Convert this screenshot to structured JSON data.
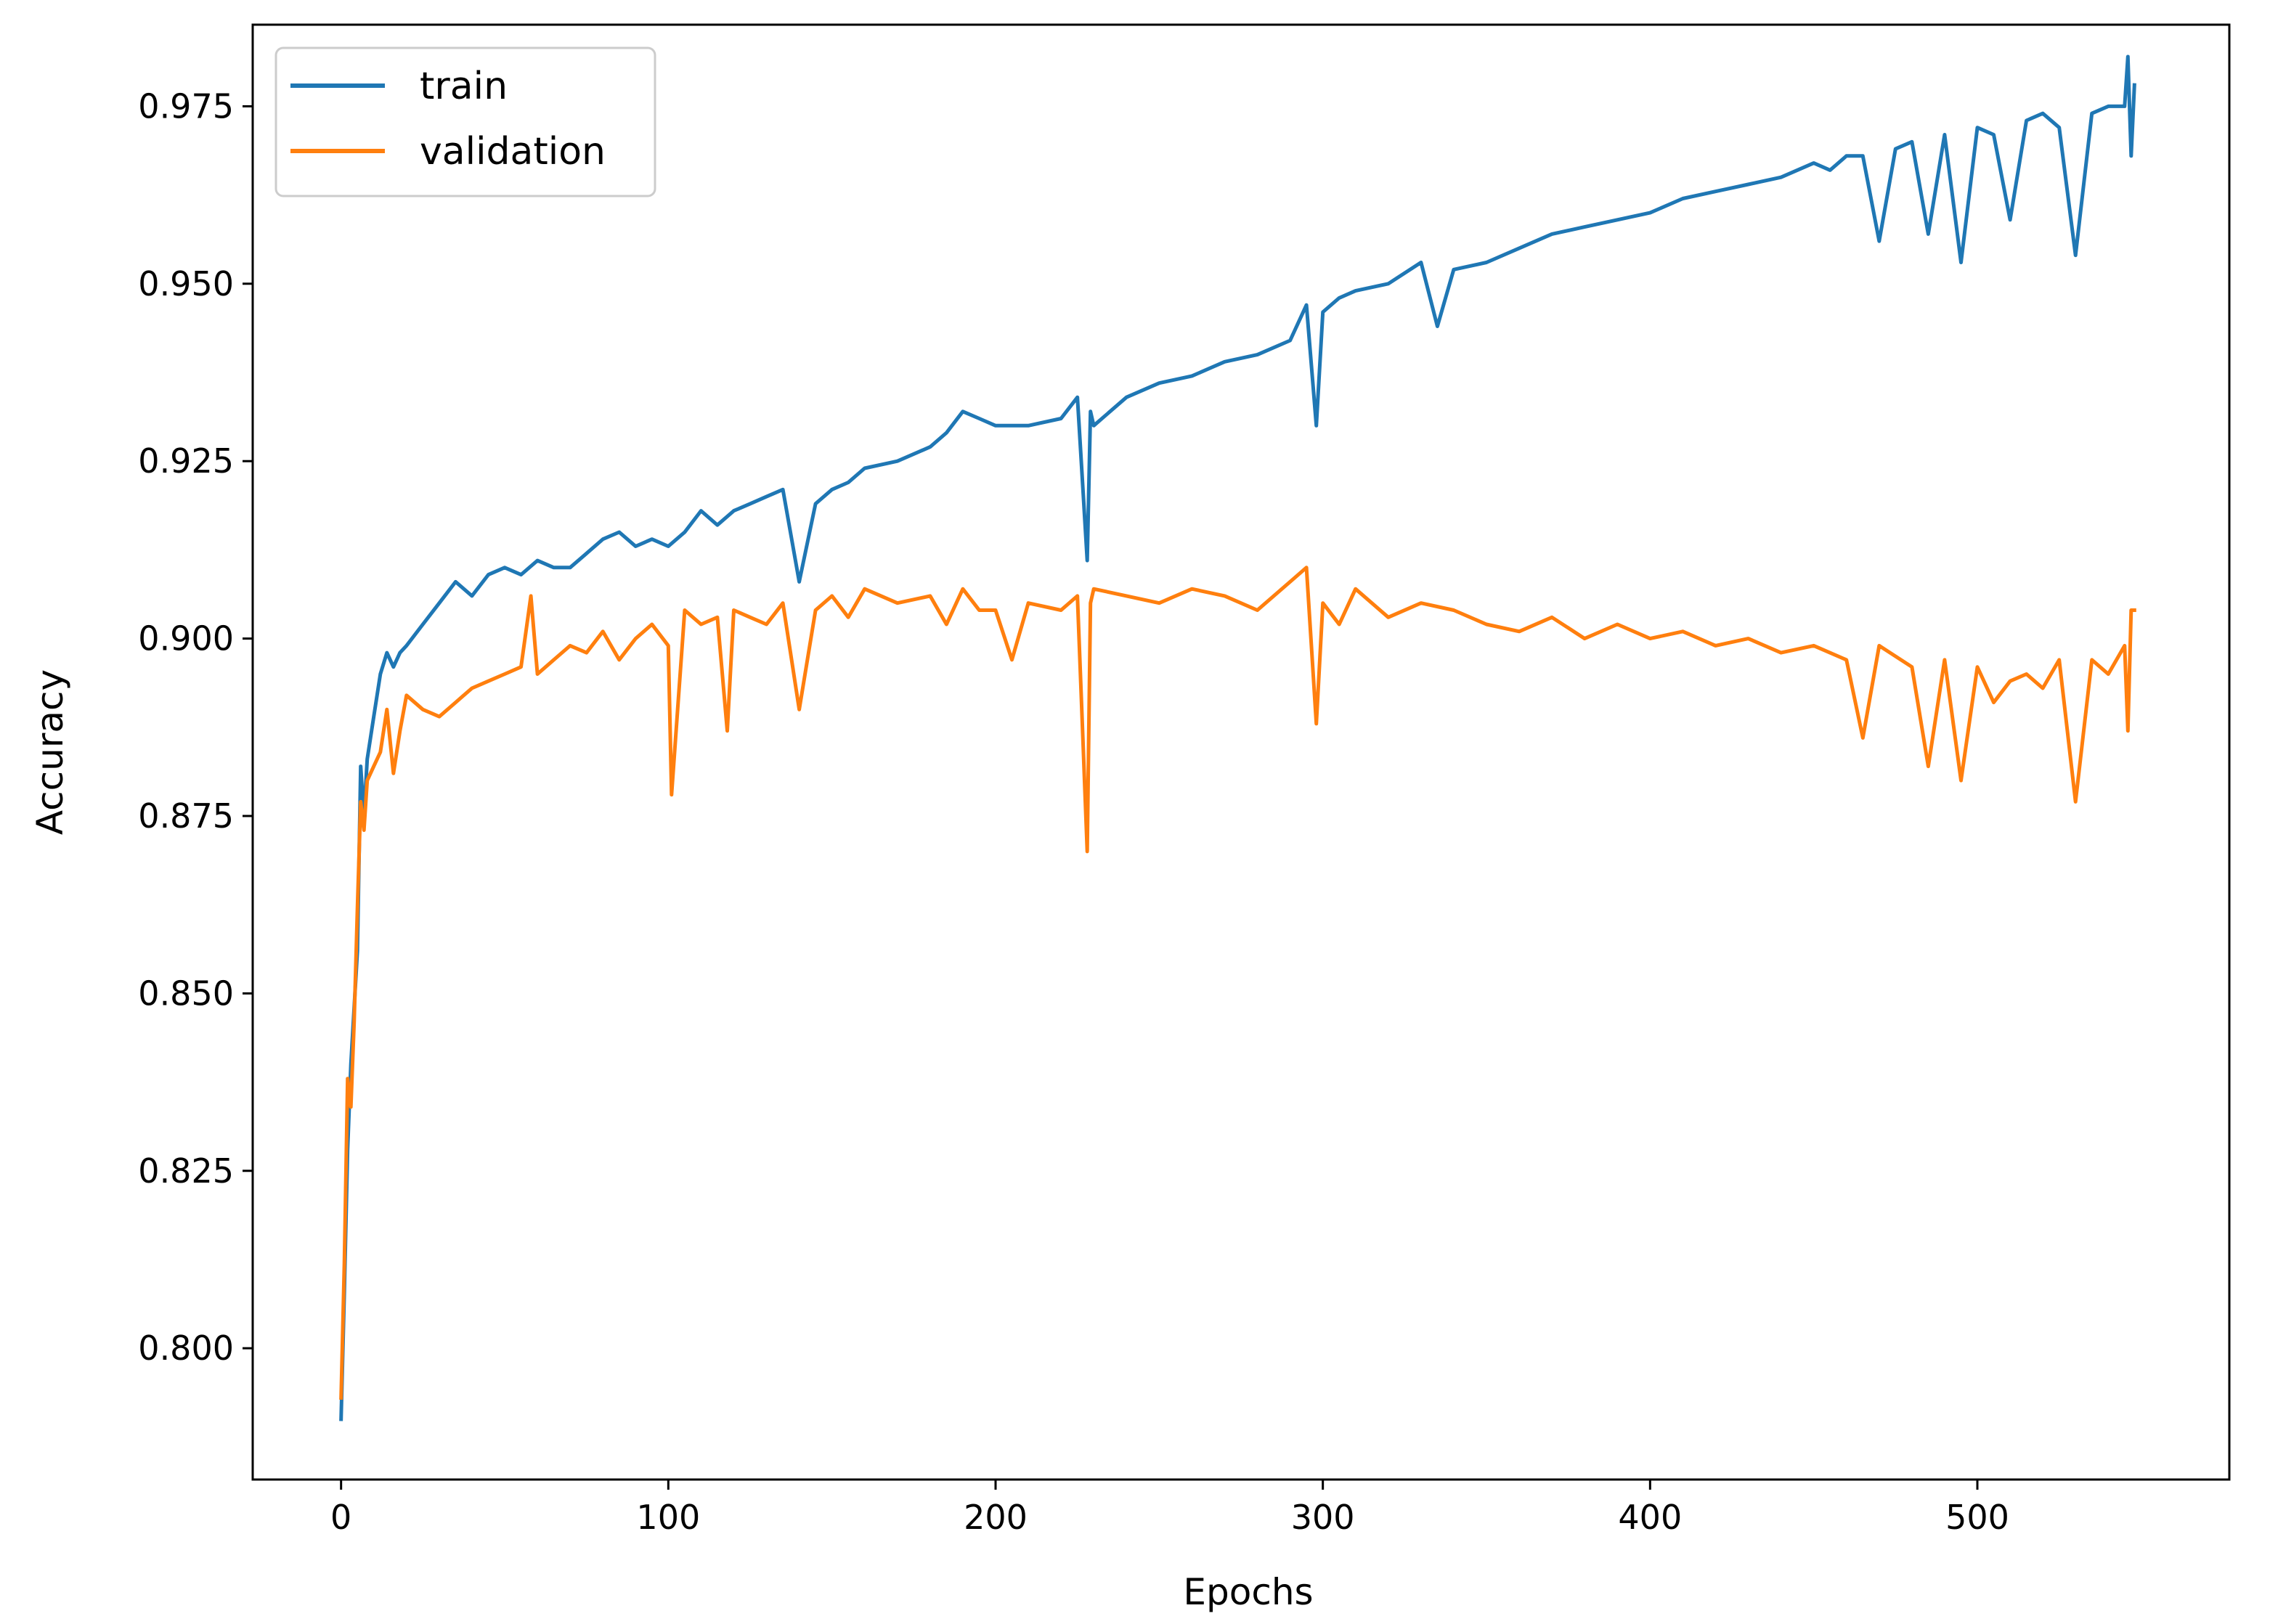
{
  "chart_data": {
    "type": "line",
    "title": "",
    "xlabel": "Epochs",
    "ylabel": "Accuracy",
    "xlim": [
      -27,
      577
    ],
    "ylim": [
      0.7815,
      0.9865
    ],
    "xticks": [
      0,
      100,
      200,
      300,
      400,
      500
    ],
    "xtick_labels": [
      "0",
      "100",
      "200",
      "300",
      "400",
      "500"
    ],
    "yticks": [
      0.8,
      0.825,
      0.85,
      0.875,
      0.9,
      0.925,
      0.95,
      0.975
    ],
    "ytick_labels": [
      "0.800",
      "0.825",
      "0.850",
      "0.875",
      "0.900",
      "0.925",
      "0.950",
      "0.975"
    ],
    "grid": false,
    "legend_position": "upper-left",
    "series": [
      {
        "name": "train",
        "color": "#1f77b4",
        "x": [
          0,
          1,
          2,
          3,
          4,
          5,
          6,
          7,
          8,
          10,
          12,
          14,
          16,
          18,
          20,
          25,
          30,
          35,
          40,
          45,
          50,
          55,
          60,
          65,
          70,
          75,
          80,
          85,
          90,
          95,
          100,
          105,
          110,
          115,
          120,
          125,
          130,
          135,
          140,
          145,
          150,
          155,
          160,
          170,
          180,
          185,
          190,
          195,
          200,
          210,
          220,
          225,
          228,
          229,
          230,
          240,
          250,
          260,
          270,
          280,
          290,
          295,
          298,
          300,
          305,
          310,
          320,
          330,
          335,
          340,
          350,
          360,
          370,
          380,
          390,
          400,
          410,
          420,
          430,
          440,
          450,
          455,
          460,
          465,
          470,
          475,
          480,
          485,
          490,
          495,
          500,
          505,
          510,
          515,
          520,
          525,
          530,
          535,
          540,
          545,
          546,
          547,
          548
        ],
        "values": [
          0.79,
          0.808,
          0.828,
          0.84,
          0.848,
          0.856,
          0.882,
          0.875,
          0.883,
          0.889,
          0.895,
          0.898,
          0.896,
          0.898,
          0.899,
          0.902,
          0.905,
          0.908,
          0.906,
          0.909,
          0.91,
          0.909,
          0.911,
          0.91,
          0.91,
          0.912,
          0.914,
          0.915,
          0.913,
          0.914,
          0.913,
          0.915,
          0.918,
          0.916,
          0.918,
          0.919,
          0.92,
          0.921,
          0.908,
          0.919,
          0.921,
          0.922,
          0.924,
          0.925,
          0.927,
          0.929,
          0.932,
          0.931,
          0.93,
          0.93,
          0.931,
          0.934,
          0.911,
          0.932,
          0.93,
          0.934,
          0.936,
          0.937,
          0.939,
          0.94,
          0.942,
          0.947,
          0.93,
          0.946,
          0.948,
          0.949,
          0.95,
          0.953,
          0.944,
          0.952,
          0.953,
          0.955,
          0.957,
          0.958,
          0.959,
          0.96,
          0.962,
          0.963,
          0.964,
          0.965,
          0.967,
          0.966,
          0.968,
          0.968,
          0.956,
          0.969,
          0.97,
          0.957,
          0.971,
          0.953,
          0.972,
          0.971,
          0.959,
          0.973,
          0.974,
          0.972,
          0.954,
          0.974,
          0.975,
          0.975,
          0.982,
          0.968,
          0.978
        ]
      },
      {
        "name": "validation",
        "color": "#ff7f0e",
        "x": [
          0,
          1,
          2,
          3,
          4,
          5,
          6,
          7,
          8,
          10,
          12,
          14,
          16,
          18,
          20,
          25,
          30,
          35,
          40,
          45,
          50,
          55,
          58,
          60,
          65,
          70,
          75,
          80,
          85,
          90,
          95,
          100,
          101,
          105,
          110,
          115,
          118,
          120,
          125,
          130,
          135,
          140,
          145,
          150,
          155,
          160,
          170,
          180,
          185,
          190,
          195,
          200,
          205,
          210,
          220,
          225,
          228,
          229,
          230,
          240,
          250,
          260,
          270,
          280,
          290,
          295,
          298,
          300,
          305,
          310,
          320,
          330,
          340,
          350,
          360,
          370,
          380,
          390,
          400,
          410,
          420,
          430,
          440,
          450,
          460,
          465,
          470,
          480,
          485,
          490,
          495,
          500,
          505,
          510,
          515,
          520,
          525,
          530,
          535,
          540,
          545,
          546,
          547,
          548
        ],
        "values": [
          0.793,
          0.812,
          0.838,
          0.834,
          0.846,
          0.862,
          0.877,
          0.873,
          0.88,
          0.882,
          0.884,
          0.89,
          0.881,
          0.887,
          0.892,
          0.89,
          0.889,
          0.891,
          0.893,
          0.894,
          0.895,
          0.896,
          0.906,
          0.895,
          0.897,
          0.899,
          0.898,
          0.901,
          0.897,
          0.9,
          0.902,
          0.899,
          0.878,
          0.904,
          0.902,
          0.903,
          0.887,
          0.904,
          0.903,
          0.902,
          0.905,
          0.89,
          0.904,
          0.906,
          0.903,
          0.907,
          0.905,
          0.906,
          0.902,
          0.907,
          0.904,
          0.904,
          0.897,
          0.905,
          0.904,
          0.906,
          0.87,
          0.905,
          0.907,
          0.906,
          0.905,
          0.907,
          0.906,
          0.904,
          0.908,
          0.91,
          0.888,
          0.905,
          0.902,
          0.907,
          0.903,
          0.905,
          0.904,
          0.902,
          0.901,
          0.903,
          0.9,
          0.902,
          0.9,
          0.901,
          0.899,
          0.9,
          0.898,
          0.899,
          0.897,
          0.886,
          0.899,
          0.896,
          0.882,
          0.897,
          0.88,
          0.896,
          0.891,
          0.894,
          0.895,
          0.893,
          0.897,
          0.877,
          0.897,
          0.895,
          0.899,
          0.887,
          0.904,
          0.904
        ]
      }
    ]
  }
}
